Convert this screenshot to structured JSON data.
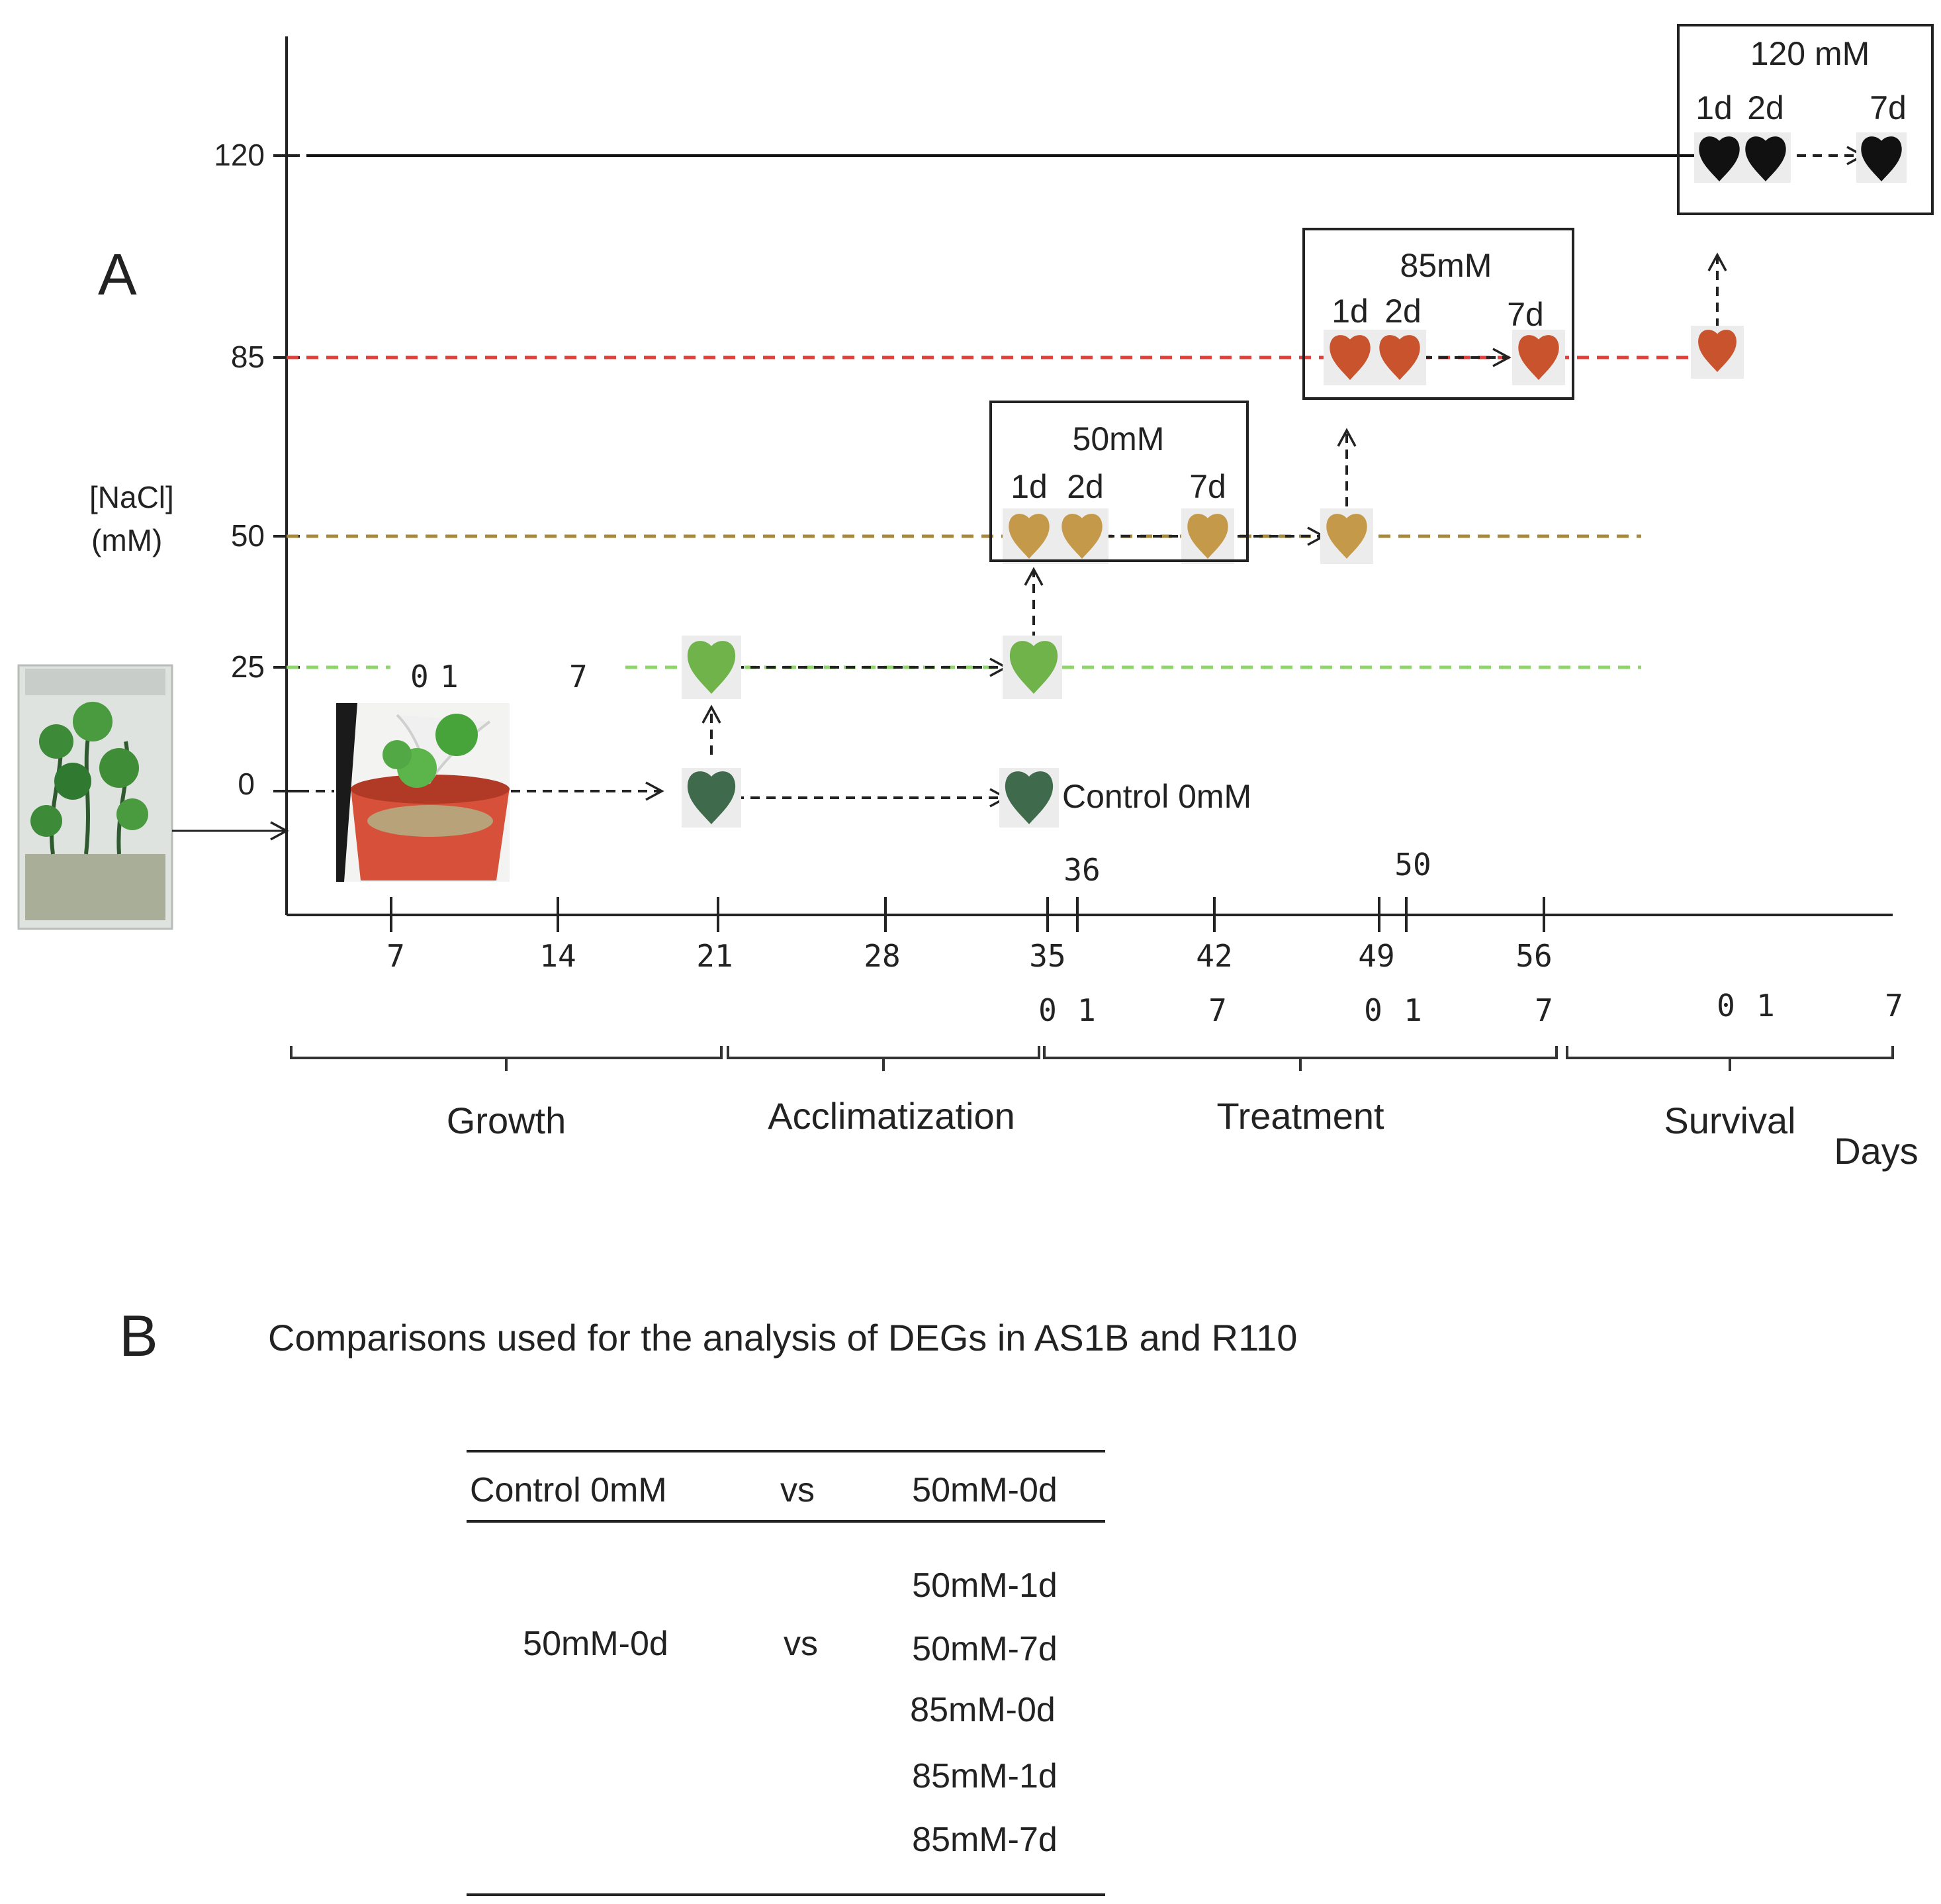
{
  "panel_a": {
    "letter": "A",
    "y_axis_label_line1": "[NaCl]",
    "y_axis_label_line2": "(mM)",
    "y_ticks": [
      "120",
      "85",
      "50",
      "25",
      "0"
    ],
    "x_ticks": [
      "7",
      "14",
      "21",
      "28",
      "35",
      "42",
      "49",
      "56"
    ],
    "x_upper_ticks": [
      "36",
      "50"
    ],
    "growth_days": [
      "0",
      "1",
      "7"
    ],
    "treatment_days_row": [
      "0",
      "1",
      "7",
      "0",
      "1",
      "7",
      "0",
      "1",
      "7"
    ],
    "phases": [
      "Growth",
      "Acclimatization",
      "Treatment",
      "Survival"
    ],
    "x_unit": "Days",
    "control_label": "Control 0mM",
    "box_50": {
      "title": "50mM",
      "d1": "1d",
      "d2": "2d",
      "d7": "7d"
    },
    "box_85": {
      "title": "85mM",
      "d1": "1d",
      "d2": "2d",
      "d7": "7d"
    },
    "box_120": {
      "title": "120 mM",
      "d1": "1d",
      "d2": "2d",
      "d7": "7d"
    },
    "colors": {
      "line_120": "#111111",
      "line_85": "#e0403a",
      "line_50": "#a6893a",
      "line_25": "#8fd66a",
      "leaf_dark_green": "#3f6b4c",
      "leaf_light_green": "#6fb34a",
      "leaf_tan": "#c49a4a",
      "leaf_orange": "#c9532c",
      "leaf_black": "#111111"
    }
  },
  "panel_b": {
    "letter": "B",
    "title": "Comparisons used for the analysis of DEGs in AS1B and R110",
    "header": {
      "left": "Control 0mM",
      "vs": "vs",
      "right": "50mM-0d"
    },
    "group": {
      "left": "50mM-0d",
      "vs": "vs",
      "rights": [
        "50mM-1d",
        "50mM-7d",
        "85mM-0d",
        "85mM-1d",
        "85mM-7d"
      ]
    }
  }
}
